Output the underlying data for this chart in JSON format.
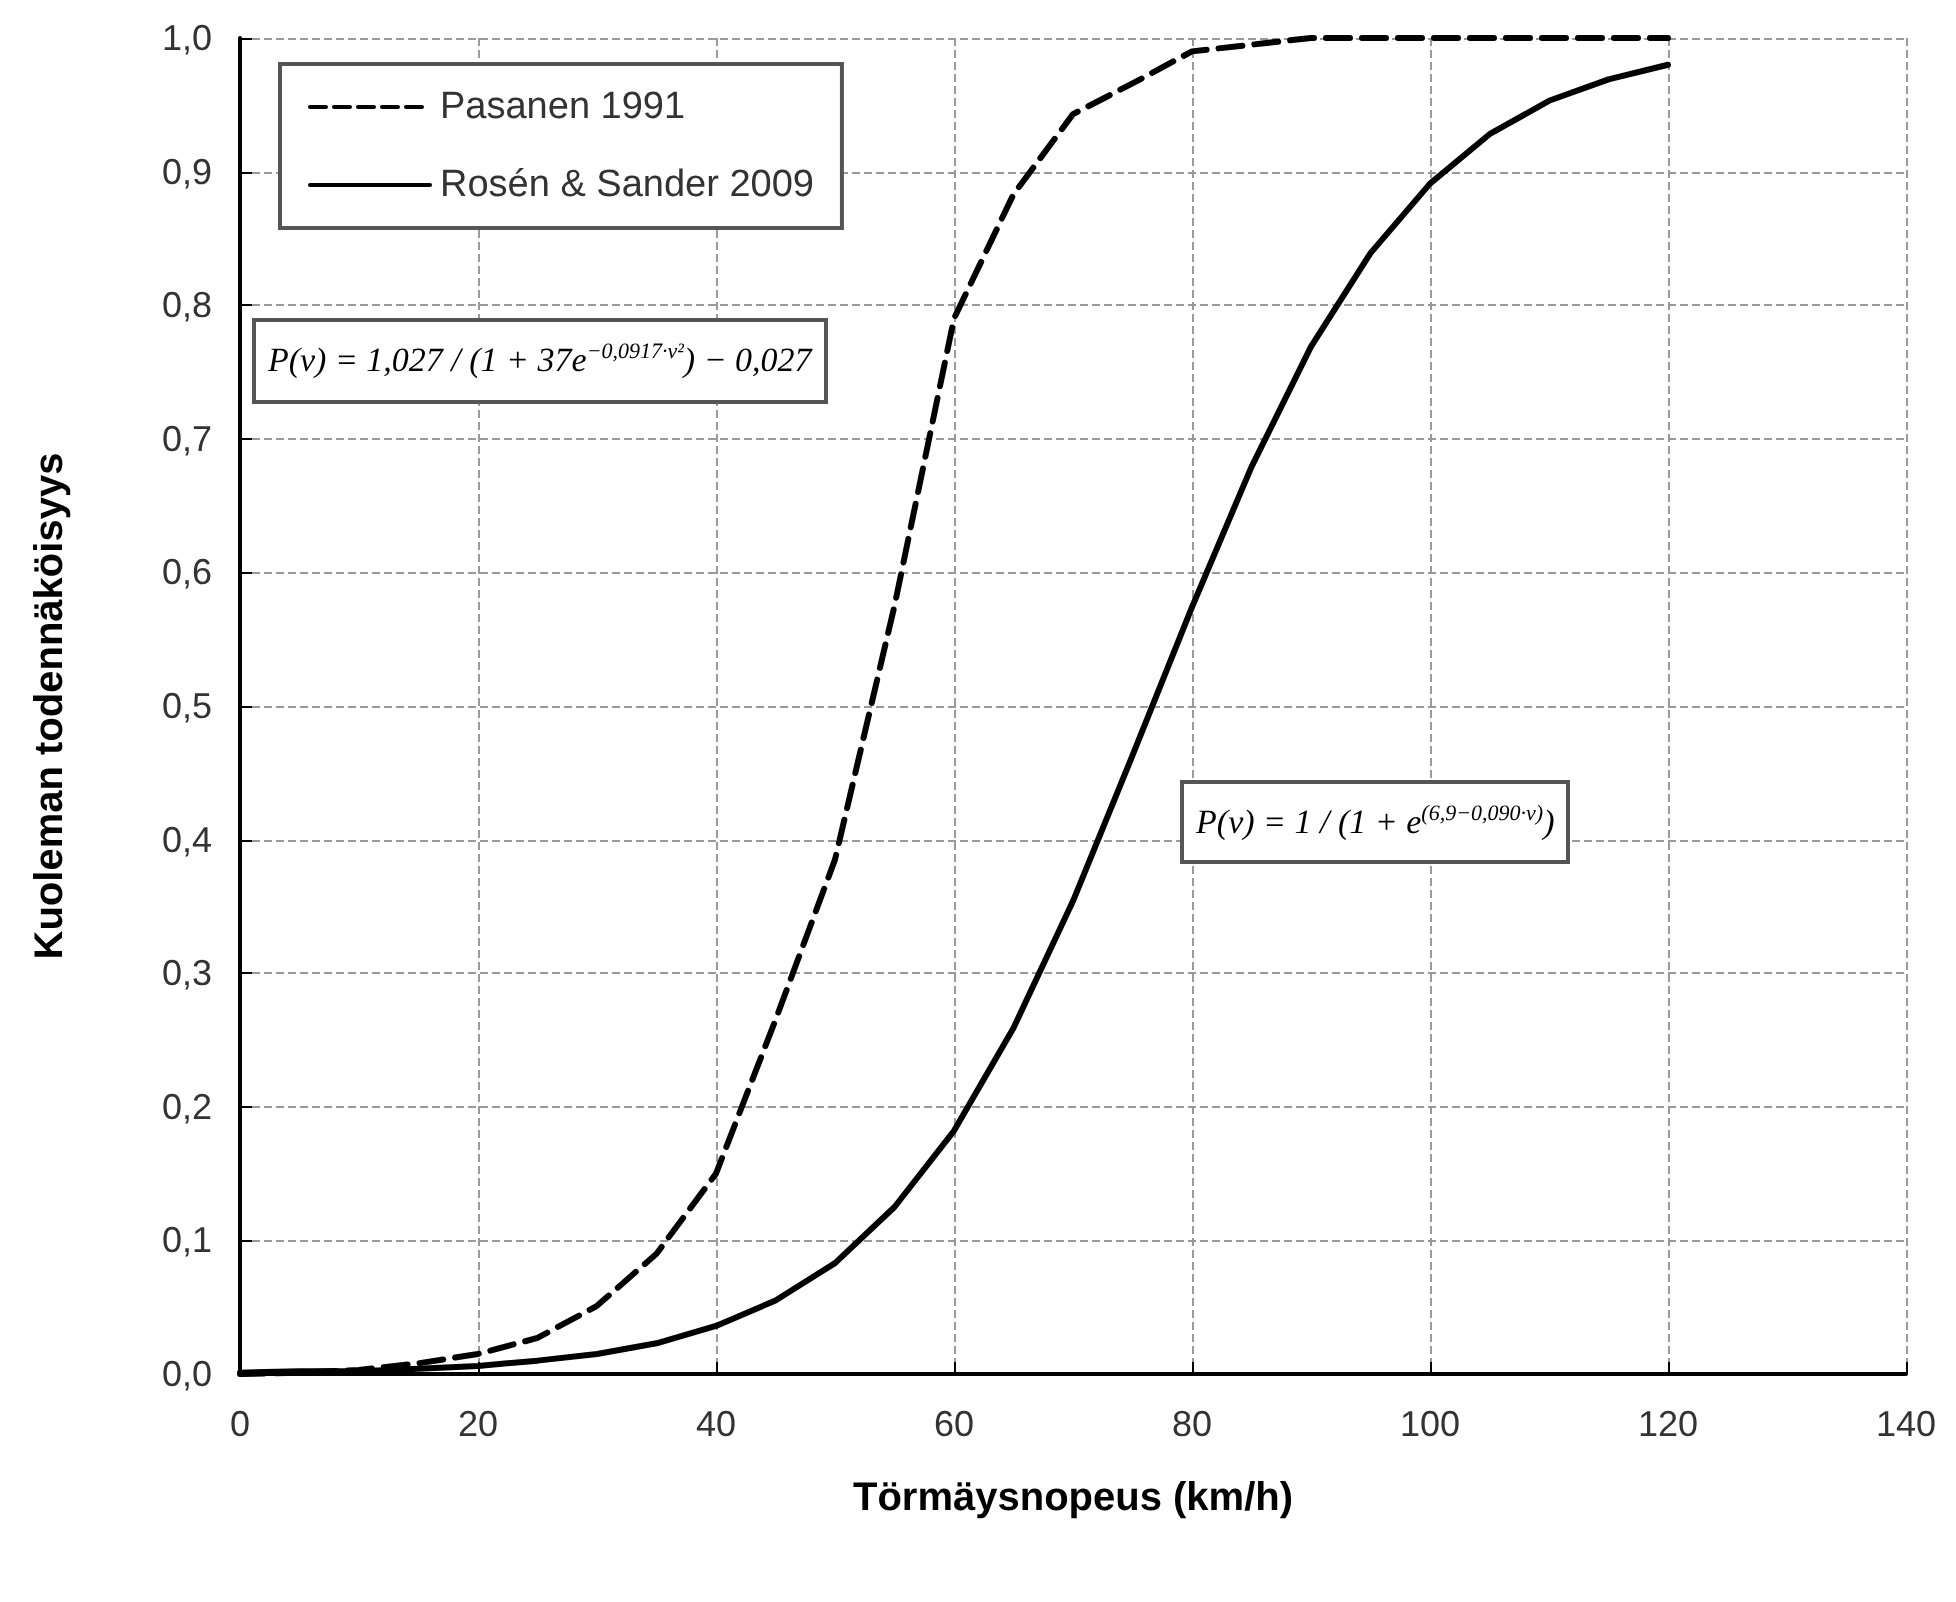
{
  "chart_data": {
    "type": "line",
    "xlabel": "Törmäysnopeus (km/h)",
    "ylabel": "Kuoleman todennäköisyys",
    "x": [
      0,
      5,
      10,
      15,
      20,
      25,
      30,
      35,
      40,
      45,
      50,
      55,
      60,
      65,
      70,
      75,
      80,
      85,
      90,
      95,
      100,
      105,
      110,
      115,
      120
    ],
    "series": [
      {
        "name": "Pasanen 1991",
        "color": "#000000",
        "line_style": "dashed",
        "values": [
          0,
          0.001,
          0.003,
          0.008,
          0.015,
          0.027,
          0.051,
          0.09,
          0.15,
          0.265,
          0.385,
          0.575,
          0.79,
          0.883,
          0.943,
          0.966,
          0.99,
          0.995,
          1.0,
          1.0,
          1.0,
          1.0,
          1.0,
          1.0,
          1.0
        ]
      },
      {
        "name": "Rosén & Sander 2009",
        "color": "#000000",
        "line_style": "solid",
        "values": [
          0.001,
          0.002,
          0.002,
          0.004,
          0.006,
          0.01,
          0.015,
          0.023,
          0.036,
          0.055,
          0.083,
          0.125,
          0.182,
          0.259,
          0.354,
          0.463,
          0.574,
          0.679,
          0.769,
          0.839,
          0.891,
          0.928,
          0.953,
          0.969,
          0.98
        ]
      }
    ],
    "xlim": [
      0,
      140
    ],
    "xticks": [
      0,
      20,
      40,
      60,
      80,
      100,
      120,
      140
    ],
    "ylim": [
      0,
      1
    ],
    "yticks": [
      {
        "value": 0,
        "label": "0,0"
      },
      {
        "value": 0.1,
        "label": "0,1"
      },
      {
        "value": 0.2,
        "label": "0,2"
      },
      {
        "value": 0.3,
        "label": "0,3"
      },
      {
        "value": 0.4,
        "label": "0,4"
      },
      {
        "value": 0.5,
        "label": "0,5"
      },
      {
        "value": 0.6,
        "label": "0,6"
      },
      {
        "value": 0.7,
        "label": "0,7"
      },
      {
        "value": 0.8,
        "label": "0,8"
      },
      {
        "value": 0.9,
        "label": "0,9"
      },
      {
        "value": 1,
        "label": "1,0"
      }
    ],
    "annotations": [
      "P(v) = 1,027 / (1 + 37e$^{−0,0917·v²}$) − 0,027",
      "P(v) = 1 / (1 + e$^{(6,9−0,090·v)}$)"
    ],
    "grid": true,
    "legend": "top left",
    "marker": "none"
  }
}
